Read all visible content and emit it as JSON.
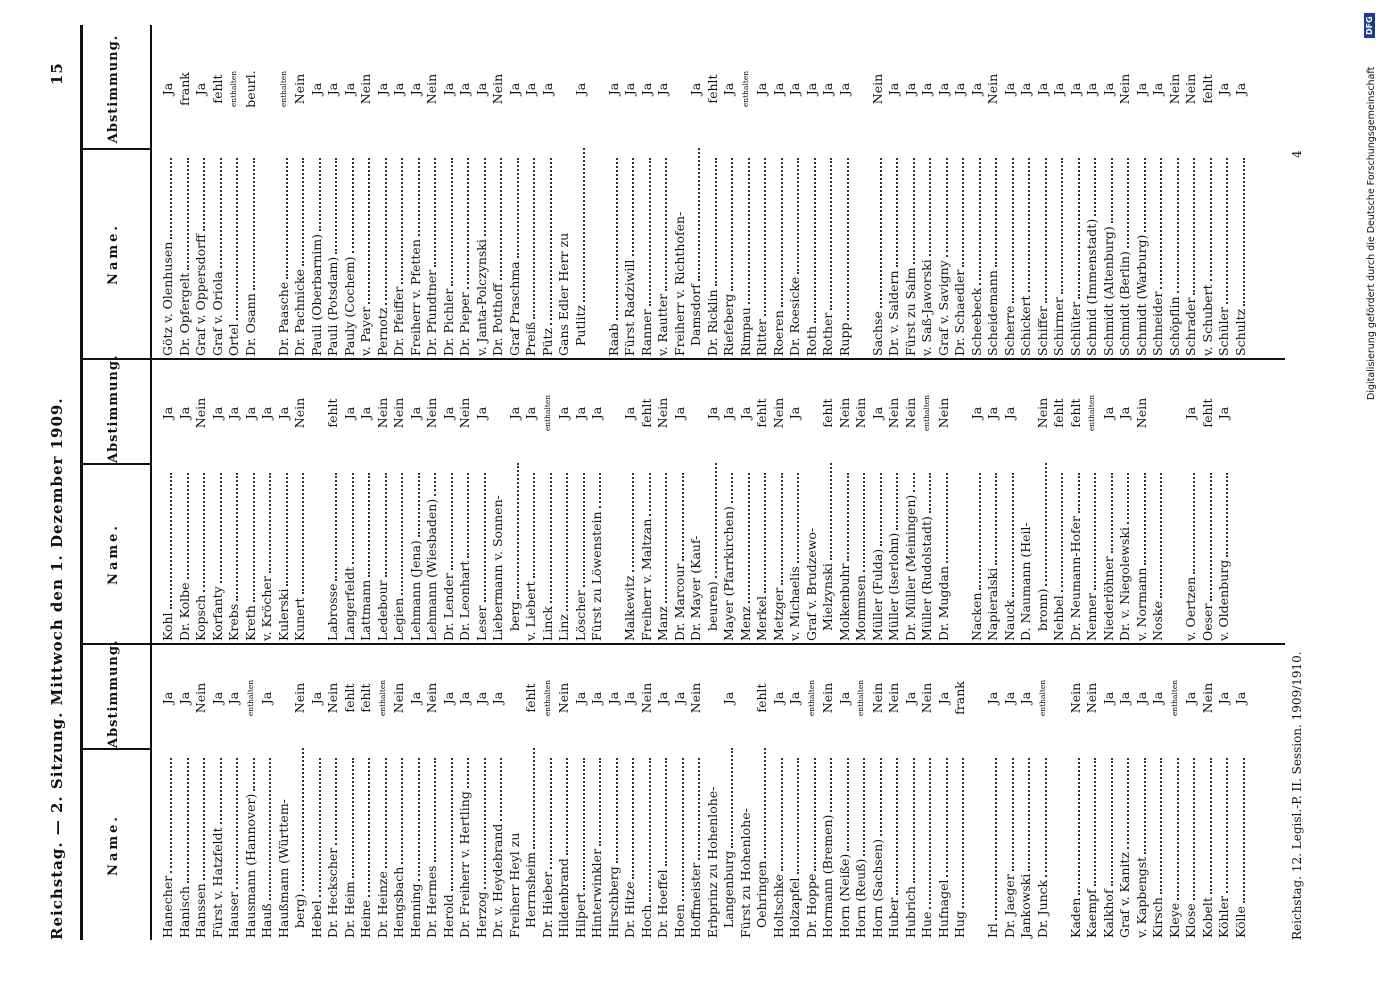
{
  "header": {
    "title": "Reichstag. — 2. Sitzung. Mittwoch den 1. Dezember 1909.",
    "page_number": "15"
  },
  "columns": [
    {
      "name_header": "Name.",
      "vote_header": "Abstimmung.",
      "groups": [
        [
          {
            "name": "Hanecher",
            "vote": "Ja"
          },
          {
            "name": "Hanisch",
            "vote": "Ja"
          },
          {
            "name": "Hanssen",
            "vote": "Nein"
          },
          {
            "name": "Fürst v. Hatzfeldt",
            "vote": "Ja"
          },
          {
            "name": "Hauser",
            "vote": "Ja"
          },
          {
            "name": "Hausmann (Hannover)",
            "vote": "enthalten"
          },
          {
            "name": "Hauß",
            "vote": "Ja"
          },
          {
            "name": [
              "Haußmann (Württem-",
              "berg)"
            ],
            "vote": "Nein"
          },
          {
            "name": "Hebel",
            "vote": "Ja"
          },
          {
            "name": "Dr. Heckscher",
            "vote": "Nein"
          },
          {
            "name": "Dr. Heim",
            "vote": "fehlt"
          },
          {
            "name": "Heine",
            "vote": "fehlt"
          },
          {
            "name": "Dr. Heinze",
            "vote": "enthalten"
          },
          {
            "name": "Hengsbach",
            "vote": "Nein"
          },
          {
            "name": "Henning",
            "vote": "Ja"
          },
          {
            "name": "Dr. Hermes",
            "vote": "Nein"
          },
          {
            "name": "Herold",
            "vote": "Ja"
          },
          {
            "name": "Dr. Freiherr v. Hertling",
            "vote": "Ja"
          },
          {
            "name": "Herzog",
            "vote": "Ja"
          },
          {
            "name": "Dr. v. Heydebrand",
            "vote": "Ja"
          },
          {
            "name": [
              "Freiherr Heyl zu",
              "Herrnsheim"
            ],
            "vote": "fehlt"
          },
          {
            "name": "Dr. Hieber",
            "vote": "enthalten"
          },
          {
            "name": "Hildenbrand",
            "vote": "Nein"
          },
          {
            "name": "Hilpert",
            "vote": "Ja"
          },
          {
            "name": "Hinterwinkler",
            "vote": "Ja"
          },
          {
            "name": "Hirschberg",
            "vote": "Ja"
          },
          {
            "name": "Dr. Hitze",
            "vote": "Ja"
          },
          {
            "name": "Hoch",
            "vote": "Nein"
          },
          {
            "name": "Dr. Hoeffel",
            "vote": "Ja"
          },
          {
            "name": "Hoen",
            "vote": "Ja"
          },
          {
            "name": "Hoffmeister",
            "vote": "Nein"
          },
          {
            "name": [
              "Erbprinz zu Hohenlohe-",
              "Langenburg"
            ],
            "vote": "Ja"
          },
          {
            "name": [
              "Fürst zu Hohenlohe-",
              "Oehringen"
            ],
            "vote": "fehlt"
          },
          {
            "name": "Holtschke",
            "vote": "Ja"
          },
          {
            "name": "Holzapfel",
            "vote": "Ja"
          },
          {
            "name": "Dr. Hoppe",
            "vote": "enthalten"
          },
          {
            "name": "Hormann (Bremen)",
            "vote": "Nein"
          },
          {
            "name": "Horn (Neiße)",
            "vote": "Ja"
          },
          {
            "name": "Horn (Reuß)",
            "vote": "enthalten"
          },
          {
            "name": "Horn (Sachsen)",
            "vote": "Nein"
          },
          {
            "name": "Huber",
            "vote": "Nein"
          },
          {
            "name": "Hubrich",
            "vote": "Ja"
          },
          {
            "name": "Hue",
            "vote": "Nein"
          },
          {
            "name": "Hufnagel",
            "vote": "Ja"
          },
          {
            "name": "Hug",
            "vote": "frank"
          }
        ],
        [
          {
            "name": "Irl",
            "vote": "Ja"
          },
          {
            "name": "Dr. Jaeger",
            "vote": "Ja"
          },
          {
            "name": "Jankowski",
            "vote": "Ja"
          },
          {
            "name": "Dr. Junck",
            "vote": "enthalten"
          }
        ],
        [
          {
            "name": "Kaden",
            "vote": "Nein"
          },
          {
            "name": "Kaempf",
            "vote": "Nein"
          },
          {
            "name": "Kalkhof",
            "vote": "Ja"
          },
          {
            "name": "Graf v. Kanitz",
            "vote": "Ja"
          },
          {
            "name": "v. Kapbengst",
            "vote": "Ja"
          },
          {
            "name": "Kirsch",
            "vote": "Ja"
          },
          {
            "name": "Kleye",
            "vote": "enthalten"
          },
          {
            "name": "Klose",
            "vote": "Ja"
          },
          {
            "name": "Kobelt",
            "vote": "Nein"
          },
          {
            "name": "Köhler",
            "vote": "Ja"
          },
          {
            "name": "Kölle",
            "vote": "Ja"
          }
        ]
      ]
    },
    {
      "name_header": "Name.",
      "vote_header": "Abstimmung.",
      "groups": [
        [
          {
            "name": "Kohl",
            "vote": "Ja"
          },
          {
            "name": "Dr. Kolbe",
            "vote": "Ja"
          },
          {
            "name": "Kopsch",
            "vote": "Nein"
          },
          {
            "name": "Korfanty",
            "vote": "Ja"
          },
          {
            "name": "Krebs",
            "vote": "Ja"
          },
          {
            "name": "Kreth",
            "vote": "Ja"
          },
          {
            "name": "v. Kröcher",
            "vote": "Ja"
          },
          {
            "name": "Kulerski",
            "vote": "Ja"
          },
          {
            "name": "Kunert",
            "vote": "Nein"
          }
        ],
        [
          {
            "name": "Labrosse",
            "vote": "fehlt"
          },
          {
            "name": "Langerfeldt",
            "vote": "Ja"
          },
          {
            "name": "Lattmann",
            "vote": "Ja"
          },
          {
            "name": "Ledebour",
            "vote": "Nein"
          },
          {
            "name": "Legien",
            "vote": "Nein"
          },
          {
            "name": "Lehmann (Jena)",
            "vote": "Ja"
          },
          {
            "name": "Lehmann (Wiesbaden)",
            "vote": "Nein"
          },
          {
            "name": "Dr. Lender",
            "vote": "Ja"
          },
          {
            "name": "Dr. Leonhart",
            "vote": "Nein"
          },
          {
            "name": "Leser",
            "vote": "Ja"
          },
          {
            "name": [
              "Liebermann v. Sonnen-",
              "berg"
            ],
            "vote": "Ja"
          },
          {
            "name": "v. Liebert",
            "vote": "Ja"
          },
          {
            "name": "Linck",
            "vote": "enthalten"
          },
          {
            "name": "Linz",
            "vote": "Ja"
          },
          {
            "name": "Löscher",
            "vote": "Ja"
          },
          {
            "name": "Fürst zu Löwenstein",
            "vote": "Ja"
          }
        ],
        [
          {
            "name": "Malkewitz",
            "vote": "Ja"
          },
          {
            "name": "Freiherr v. Maltzan",
            "vote": "fehlt"
          },
          {
            "name": "Manz",
            "vote": "Nein"
          },
          {
            "name": "Dr. Marcour",
            "vote": "Ja"
          },
          {
            "name": [
              "Dr. Mayer (Kauf-",
              "beuren)"
            ],
            "vote": "Ja"
          },
          {
            "name": "Mayer (Pfarrkirchen)",
            "vote": "Ja"
          },
          {
            "name": "Menz",
            "vote": "Ja"
          },
          {
            "name": "Merkel",
            "vote": "fehlt"
          },
          {
            "name": "Metzger",
            "vote": "Nein"
          },
          {
            "name": "v. Michaelis",
            "vote": "Ja"
          },
          {
            "name": [
              "Graf v. Brudzewo-",
              "Mielzynski"
            ],
            "vote": "fehlt"
          },
          {
            "name": "Molkenbuhr",
            "vote": "Nein"
          },
          {
            "name": "Mommsen",
            "vote": "Nein"
          },
          {
            "name": "Müller (Fulda)",
            "vote": "Ja"
          },
          {
            "name": "Müller (Iserlohn)",
            "vote": "Nein"
          },
          {
            "name": "Dr. Müller (Meiningen)",
            "vote": "Nein"
          },
          {
            "name": "Müller (Rudolstadt)",
            "vote": "enthalten"
          },
          {
            "name": "Dr. Mugdan",
            "vote": "Nein"
          }
        ],
        [
          {
            "name": "Nacken",
            "vote": "Ja"
          },
          {
            "name": "Napieralski",
            "vote": "Ja"
          },
          {
            "name": "Nauck",
            "vote": "Ja"
          },
          {
            "name": [
              "D. Naumann (Heil-",
              "bronn)"
            ],
            "vote": "Nein"
          },
          {
            "name": "Nehbel",
            "vote": "fehlt"
          },
          {
            "name": "Dr. Neumann-Hofer",
            "vote": "fehlt"
          },
          {
            "name": "Nenner",
            "vote": "enthalten"
          },
          {
            "name": "Niederlöhner",
            "vote": "Ja"
          },
          {
            "name": "Dr. v. Niegolewski",
            "vote": "Ja"
          },
          {
            "name": "v. Normann",
            "vote": "Nein"
          },
          {
            "name": "Noske"
          }
        ],
        [
          {
            "name": "v. Oertzen",
            "vote": "Ja"
          },
          {
            "name": "Oeser",
            "vote": "fehlt"
          },
          {
            "name": "v. Oldenburg",
            "vote": "Ja"
          }
        ]
      ]
    },
    {
      "name_header": "Name.",
      "vote_header": "Abstimmung.",
      "groups": [
        [
          {
            "name": "Götz v. Olenhusen",
            "vote": "Ja"
          },
          {
            "name": "Dr. Opfergelt",
            "vote": "frank"
          },
          {
            "name": "Graf v. Oppersdorff",
            "vote": "Ja"
          },
          {
            "name": "Graf v. Oriola",
            "vote": "fehlt"
          },
          {
            "name": "Ortel",
            "vote": "enthalten"
          },
          {
            "name": "Dr. Osann",
            "vote": "beurl."
          }
        ],
        [
          {
            "name": "Dr. Paasche",
            "vote": "enthalten"
          },
          {
            "name": "Dr. Pachnicke",
            "vote": "Nein"
          },
          {
            "name": "Pauli (Oberbarnim)",
            "vote": "Ja"
          },
          {
            "name": "Pauli (Potsdam)",
            "vote": "Ja"
          },
          {
            "name": "Pauly (Cochem)",
            "vote": "Ja"
          },
          {
            "name": "v. Payer",
            "vote": "Nein"
          },
          {
            "name": "Pernotz",
            "vote": "Ja"
          },
          {
            "name": "Dr. Pfeiffer",
            "vote": "Ja"
          },
          {
            "name": "Freiherr v. Pfetten",
            "vote": "Ja"
          },
          {
            "name": "Dr. Pfundtner",
            "vote": "Nein"
          },
          {
            "name": "Dr. Pichler",
            "vote": "Ja"
          },
          {
            "name": "Dr. Pieper",
            "vote": "Ja"
          },
          {
            "name": "v. Janta-Polczynski",
            "vote": "Ja"
          },
          {
            "name": "Dr. Potthoff",
            "vote": "Nein"
          },
          {
            "name": "Graf Praschma",
            "vote": "Ja"
          },
          {
            "name": "Preiß",
            "vote": "Ja"
          },
          {
            "name": "Pütz",
            "vote": "Ja"
          },
          {
            "name": [
              "Gans Edler Herr zu",
              "Putlitz"
            ],
            "vote": "Ja"
          }
        ],
        [
          {
            "name": "Raab",
            "vote": "Ja"
          },
          {
            "name": "Fürst Radziwill",
            "vote": "Ja"
          },
          {
            "name": "Ranner",
            "vote": "Ja"
          },
          {
            "name": "v. Rautter",
            "vote": "Ja"
          },
          {
            "name": [
              "Freiherr v. Richthofen-",
              "Damsdorf"
            ],
            "vote": "Ja"
          },
          {
            "name": "Dr. Ricklin",
            "vote": "fehlt"
          },
          {
            "name": "Riefeberg",
            "vote": "Ja"
          },
          {
            "name": "Rimpau",
            "vote": "enthalten"
          },
          {
            "name": "Ritter",
            "vote": "Ja"
          },
          {
            "name": "Roeren",
            "vote": "Ja"
          },
          {
            "name": "Dr. Roesicke",
            "vote": "Ja"
          },
          {
            "name": "Roth",
            "vote": "Ja"
          },
          {
            "name": "Rother",
            "vote": "Ja"
          },
          {
            "name": "Rupp",
            "vote": "Ja"
          }
        ],
        [
          {
            "name": "Sachse",
            "vote": "Nein"
          },
          {
            "name": "Dr. v. Saldern",
            "vote": "Ja"
          },
          {
            "name": "Fürst zu Salm",
            "vote": "Ja"
          },
          {
            "name": "v. Saß-Jaworski",
            "vote": "Ja"
          },
          {
            "name": "Graf v. Savigny",
            "vote": "Ja"
          },
          {
            "name": "Dr. Schaedler",
            "vote": "Ja"
          },
          {
            "name": "Scheebeck",
            "vote": "Ja"
          },
          {
            "name": "Scheidemann",
            "vote": "Nein"
          },
          {
            "name": "Scherre",
            "vote": "Ja"
          },
          {
            "name": "Schickert",
            "vote": "Ja"
          },
          {
            "name": "Schiffer",
            "vote": "Ja"
          },
          {
            "name": "Schirmer",
            "vote": "Ja"
          },
          {
            "name": "Schlüter",
            "vote": "Ja"
          },
          {
            "name": "Schmid (Immenstadt)",
            "vote": "Ja"
          },
          {
            "name": "Schmidt (Altenburg)",
            "vote": "Ja"
          },
          {
            "name": "Schmidt (Berlin)",
            "vote": "Nein"
          },
          {
            "name": "Schmidt (Warburg)",
            "vote": "Ja"
          },
          {
            "name": "Schneider",
            "vote": "Ja"
          },
          {
            "name": "Schöpflin",
            "vote": "Nein"
          },
          {
            "name": "Schrader",
            "vote": "Nein"
          },
          {
            "name": "v. Schubert",
            "vote": "fehlt"
          },
          {
            "name": "Schüler",
            "vote": "Ja"
          },
          {
            "name": "Schultz",
            "vote": "Ja"
          }
        ]
      ]
    }
  ],
  "footer": {
    "session": "Reichstag. 12. Legisl.-P. II. Session. 1909/1910.",
    "signature": "4"
  },
  "credit": {
    "text": "Digitalisierung gefördert durch die Deutsche Forschungsgemeinschaft",
    "logo": "DFG"
  }
}
